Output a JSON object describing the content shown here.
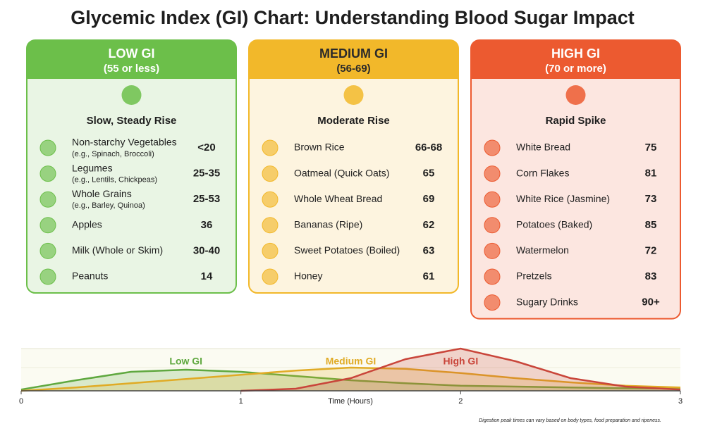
{
  "title": "Glycemic Index (GI) Chart: Understanding Blood Sugar Impact",
  "columns": [
    {
      "title": "LOW GI",
      "range": "(55 or less)",
      "subtitle": "Slow, Steady Rise",
      "color": "#6cbf4a",
      "items": [
        {
          "name": "Non-starchy Vegetables",
          "note": "(e.g., Spinach, Broccoli)",
          "gi": "<20"
        },
        {
          "name": "Legumes",
          "note": "(e.g., Lentils, Chickpeas)",
          "gi": "25-35"
        },
        {
          "name": "Whole Grains",
          "note": "(e.g., Barley, Quinoa)",
          "gi": "25-53"
        },
        {
          "name": "Apples",
          "gi": 36
        },
        {
          "name": "Milk (Whole or Skim)",
          "gi": "30-40"
        },
        {
          "name": "Peanuts",
          "gi": 14
        }
      ]
    },
    {
      "title": "MEDIUM GI",
      "range": "(56-69)",
      "subtitle": "Moderate Rise",
      "color": "#f2b82a",
      "items": [
        {
          "name": "Brown Rice",
          "gi": "66-68"
        },
        {
          "name": "Oatmeal (Quick Oats)",
          "gi": 65
        },
        {
          "name": "Whole Wheat Bread",
          "gi": 69
        },
        {
          "name": "Bananas (Ripe)",
          "gi": 62
        },
        {
          "name": "Sweet Potatoes (Boiled)",
          "gi": 63
        },
        {
          "name": "Honey",
          "gi": 61
        }
      ]
    },
    {
      "title": "HIGH GI",
      "range": "(70 or more)",
      "subtitle": "Rapid Spike",
      "color": "#ec5a30",
      "items": [
        {
          "name": "White Bread",
          "gi": 75
        },
        {
          "name": "Corn Flakes",
          "gi": 81
        },
        {
          "name": "White Rice (Jasmine)",
          "gi": 73
        },
        {
          "name": "Potatoes (Baked)",
          "gi": 85
        },
        {
          "name": "Watermelon",
          "gi": 72
        },
        {
          "name": "Pretzels",
          "gi": 83
        },
        {
          "name": "Sugary Drinks",
          "gi": "90+"
        }
      ]
    }
  ],
  "chart_data": {
    "type": "line",
    "x_label": "Time (Hours)",
    "x": [
      0,
      0.25,
      0.5,
      0.75,
      1,
      1.25,
      1.5,
      1.75,
      2,
      2.25,
      2.5,
      2.75,
      3
    ],
    "series": [
      {
        "name": "Low GI",
        "color": "#5fa83f",
        "values": [
          3,
          25,
          45,
          50,
          45,
          35,
          25,
          18,
          12,
          10,
          8,
          6,
          5
        ]
      },
      {
        "name": "Medium GI",
        "color": "#e0ab25",
        "values": [
          0,
          8,
          18,
          28,
          38,
          48,
          55,
          52,
          42,
          30,
          20,
          12,
          8
        ]
      },
      {
        "name": "High GI",
        "color": "#c9453a",
        "values": [
          null,
          null,
          null,
          null,
          0,
          5,
          30,
          75,
          100,
          70,
          30,
          10,
          3
        ]
      }
    ],
    "xlim": [
      0,
      3
    ],
    "xticks": [
      0,
      1,
      2,
      3
    ],
    "ylim": [
      0,
      100
    ],
    "footnote": "Digestion peak times can vary based on body types, food preparation and ripeness."
  }
}
